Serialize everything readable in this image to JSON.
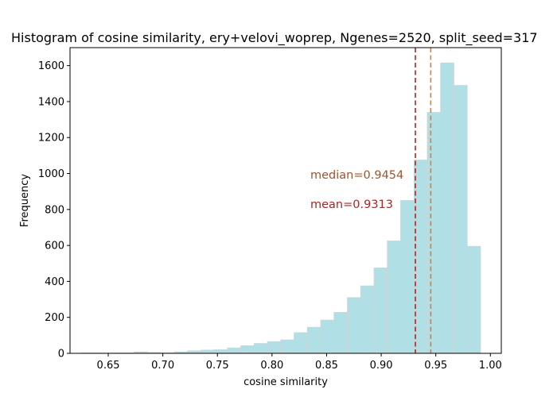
{
  "chart_data": {
    "type": "bar",
    "title": "Histogram of cosine similarity, ery+velovi_woprep, Ngenes=2520, split_seed=317",
    "xlabel": "cosine similarity",
    "ylabel": "Frequency",
    "xlim": [
      0.615,
      1.01
    ],
    "ylim": [
      0,
      1700
    ],
    "xticks": [
      "0.65",
      "0.70",
      "0.75",
      "0.80",
      "0.85",
      "0.90",
      "0.95",
      "1.00"
    ],
    "yticks": [
      "0",
      "200",
      "400",
      "600",
      "800",
      "1000",
      "1200",
      "1400",
      "1600"
    ],
    "bin_edges": [
      0.625,
      0.6372,
      0.6494,
      0.6616,
      0.6738,
      0.686,
      0.6982,
      0.7104,
      0.7226,
      0.7348,
      0.747,
      0.7592,
      0.7714,
      0.7836,
      0.7958,
      0.808,
      0.8202,
      0.8324,
      0.8446,
      0.8568,
      0.869,
      0.8812,
      0.8934,
      0.9056,
      0.9178,
      0.93,
      0.9422,
      0.9544,
      0.9666,
      0.9788,
      0.991
    ],
    "values": [
      2,
      2,
      2,
      2,
      8,
      5,
      3,
      8,
      14,
      18,
      20,
      30,
      42,
      55,
      65,
      75,
      115,
      145,
      185,
      228,
      310,
      375,
      475,
      625,
      850,
      1075,
      1340,
      1615,
      1490,
      595
    ],
    "bar_color": "#b0dfe6",
    "bar_edge_color": "#d3d3d3",
    "mean": {
      "value": 0.9313,
      "label": "mean=0.9313",
      "color": "#b22222"
    },
    "median": {
      "value": 0.9454,
      "label": "median=0.9454",
      "color": "#e07b39",
      "text_color": "#a0522d"
    }
  }
}
